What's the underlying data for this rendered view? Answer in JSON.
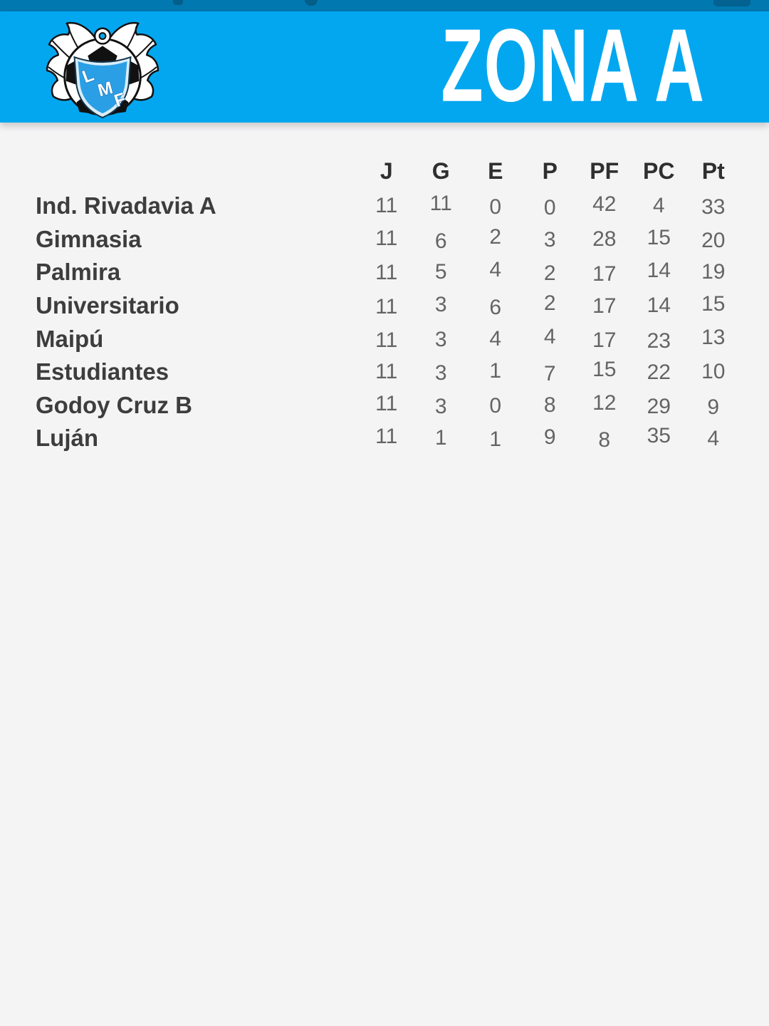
{
  "status_bar": {
    "icons": [
      "notification-hint",
      "notification-hint",
      "battery"
    ]
  },
  "header": {
    "title": "ZONA A",
    "logo_letters": [
      "L",
      "M",
      "F"
    ]
  },
  "table": {
    "columns": [
      "J",
      "G",
      "E",
      "P",
      "PF",
      "PC",
      "Pt"
    ],
    "rows": [
      {
        "team": "Ind. Rivadavia A",
        "values": [
          "11",
          "11",
          "0",
          "0",
          "42",
          "4",
          "33"
        ]
      },
      {
        "team": "Gimnasia",
        "values": [
          "11",
          "6",
          "2",
          "3",
          "28",
          "15",
          "20"
        ]
      },
      {
        "team": "Palmira",
        "values": [
          "11",
          "5",
          "4",
          "2",
          "17",
          "14",
          "19"
        ]
      },
      {
        "team": "Universitario",
        "values": [
          "11",
          "3",
          "6",
          "2",
          "17",
          "14",
          "15"
        ]
      },
      {
        "team": "Maipú",
        "values": [
          "11",
          "3",
          "4",
          "4",
          "17",
          "23",
          "13"
        ]
      },
      {
        "team": "Estudiantes",
        "values": [
          "11",
          "3",
          "1",
          "7",
          "15",
          "22",
          "10"
        ]
      },
      {
        "team": "Godoy Cruz B",
        "values": [
          "11",
          "3",
          "0",
          "8",
          "12",
          "29",
          "9"
        ]
      },
      {
        "team": "Luján",
        "values": [
          "11",
          "1",
          "1",
          "9",
          "8",
          "35",
          "4"
        ]
      }
    ]
  },
  "colors": {
    "banner": "#03a7f0",
    "status_bar": "#0278b0",
    "background": "#f4f4f5",
    "shield_blue": "#2b9fe6",
    "team_text": "#3d3d3d",
    "number_text": "#646464"
  }
}
